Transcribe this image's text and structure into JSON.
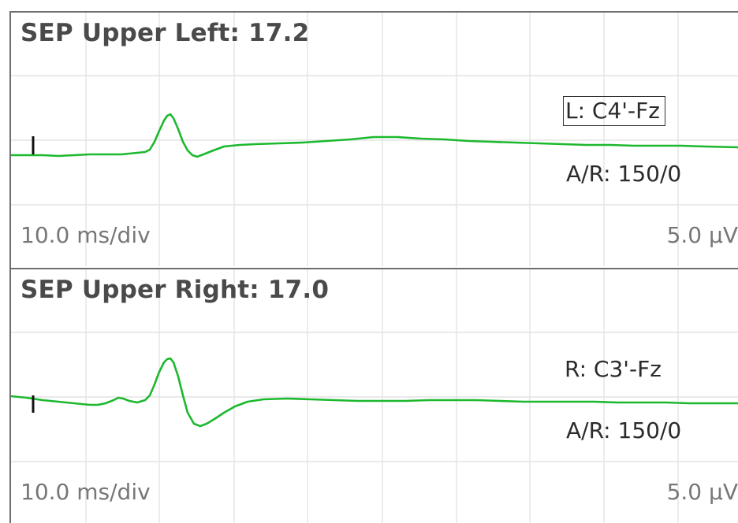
{
  "colors": {
    "waveform": "#1cb82e",
    "grid": "#e3e3e3",
    "panel_border": "#6e6e6e",
    "marker": "#111111"
  },
  "panels": [
    {
      "title": "SEP Upper Left: 17.2",
      "montage": "L: C4'-Fz",
      "montage_boxed": true,
      "ar": "A/R: 150/0",
      "time_scale": "10.0 ms/div",
      "amp_scale": "5.0 µV"
    },
    {
      "title": "SEP Upper Right: 17.0",
      "montage": "R: C3'-Fz",
      "montage_boxed": false,
      "ar": "A/R: 150/0",
      "time_scale": "10.0 ms/div",
      "amp_scale": "5.0 µV"
    }
  ]
}
